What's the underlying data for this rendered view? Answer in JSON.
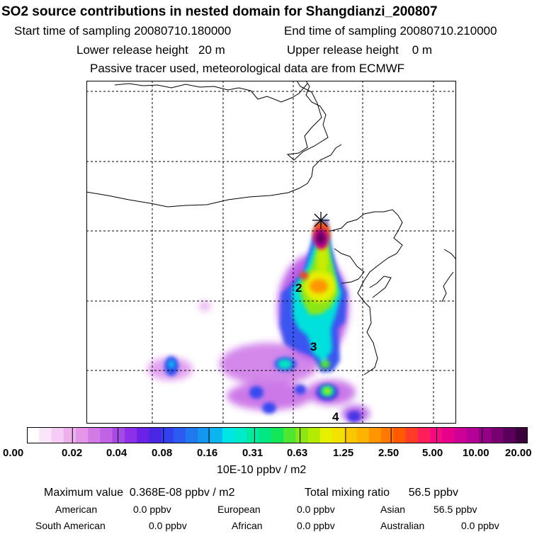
{
  "header": {
    "title": "SO2 source contributions in nested domain for Shangdianzi_200807",
    "start_label": "Start time of sampling 20080710.180000",
    "end_label": "End time of sampling 20080710.210000",
    "lower_height": "Lower release height   20 m",
    "upper_height": "Upper release height    0 m",
    "tracer_note": "Passive tracer used, meteorological data are from ECMWF"
  },
  "map": {
    "station_marker": "star-cross-icon",
    "region_labels": [
      "2",
      "3",
      "4"
    ]
  },
  "colorbar": {
    "tick_labels": [
      "0.00",
      "0.02",
      "0.04",
      "0.08",
      "0.16",
      "0.31",
      "0.63",
      "1.25",
      "2.50",
      "5.00",
      "10.00",
      "20.00"
    ],
    "colors": [
      "#ffffff",
      "#fae6fa",
      "#f4ccf4",
      "#eeb1ee",
      "#e497e9",
      "#d27be6",
      "#c061e6",
      "#a64ae6",
      "#8c2fe6",
      "#6b21e6",
      "#4a27e6",
      "#3340f0",
      "#2c5bf0",
      "#2179f0",
      "#1497f0",
      "#0ab5f0",
      "#00e6e6",
      "#00ebc8",
      "#00eba0",
      "#00e680",
      "#14e65a",
      "#50e632",
      "#8ce614",
      "#b4eb00",
      "#e6f000",
      "#f5e100",
      "#fac800",
      "#fcb400",
      "#ff9600",
      "#ff7800",
      "#ff5a00",
      "#ff3c28",
      "#ff1e5a",
      "#f50a82",
      "#e6008c",
      "#cd0096",
      "#b40096",
      "#960087",
      "#780073",
      "#5a005a",
      "#3c003c"
    ],
    "units": "10E-10 ppbv / m2"
  },
  "stats": {
    "max_value": "Maximum value  0.368E-08 ppbv / m2",
    "total_mixing_ratio": "Total mixing ratio      56.5 ppbv",
    "american_label": "American",
    "american_value": "0.0 ppbv",
    "european_label": "European",
    "european_value": "0.0 ppbv",
    "asian_label": "Asian",
    "asian_value": "56.5 ppbv",
    "south_american_label": "South American",
    "south_american_value": "0.0 ppbv",
    "african_label": "African",
    "african_value": "0.0 ppbv",
    "australian_label": "Australian",
    "australian_value": "0.0 ppbv"
  }
}
